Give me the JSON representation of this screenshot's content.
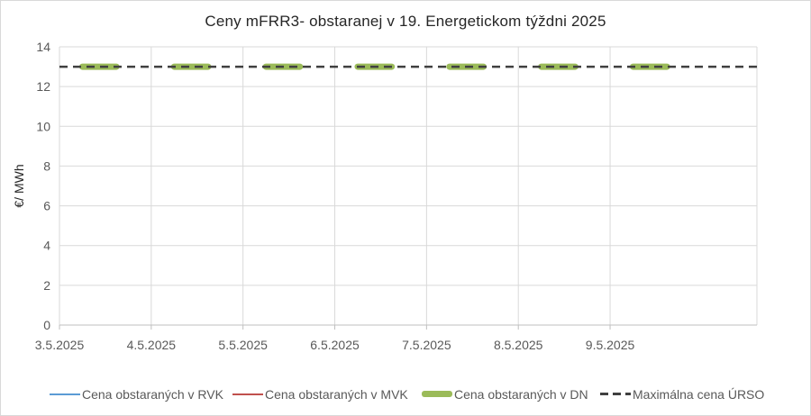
{
  "chart_data": {
    "type": "line",
    "title": "Ceny mFRR3- obstaranej v 19. Energetickom týždni 2025",
    "ylabel": "€/ MWh",
    "xlabel": "",
    "ylim": [
      0,
      14
    ],
    "yticks": [
      0,
      2,
      4,
      6,
      8,
      10,
      12,
      14
    ],
    "x_tick_labels": [
      "3.5.2025",
      "4.5.2025",
      "5.5.2025",
      "6.5.2025",
      "7.5.2025",
      "8.5.2025",
      "9.5.2025"
    ],
    "grid": true,
    "legend_position": "bottom",
    "series": [
      {
        "name": "Cena obstaraných v RVK",
        "color": "#5b9bd5",
        "style": "solid-thin",
        "segments": []
      },
      {
        "name": "Cena obstaraných v MVK",
        "color": "#c0504d",
        "style": "solid-thin",
        "segments": []
      },
      {
        "name": "Cena obstaraných v DN",
        "color": "#9bbb59",
        "style": "solid-thick",
        "segments": [
          {
            "day": 0,
            "from": 0.25,
            "to": 0.62,
            "y": 13
          },
          {
            "day": 1,
            "from": 0.25,
            "to": 0.62,
            "y": 13
          },
          {
            "day": 2,
            "from": 0.25,
            "to": 0.62,
            "y": 13
          },
          {
            "day": 3,
            "from": 0.25,
            "to": 0.62,
            "y": 13
          },
          {
            "day": 4,
            "from": 0.25,
            "to": 0.62,
            "y": 13
          },
          {
            "day": 5,
            "from": 0.25,
            "to": 0.62,
            "y": 13
          },
          {
            "day": 6,
            "from": 0.25,
            "to": 0.62,
            "y": 13
          }
        ]
      },
      {
        "name": "Maximálna cena ÚRSO",
        "color": "#404040",
        "style": "dashed",
        "value": 13
      }
    ]
  }
}
